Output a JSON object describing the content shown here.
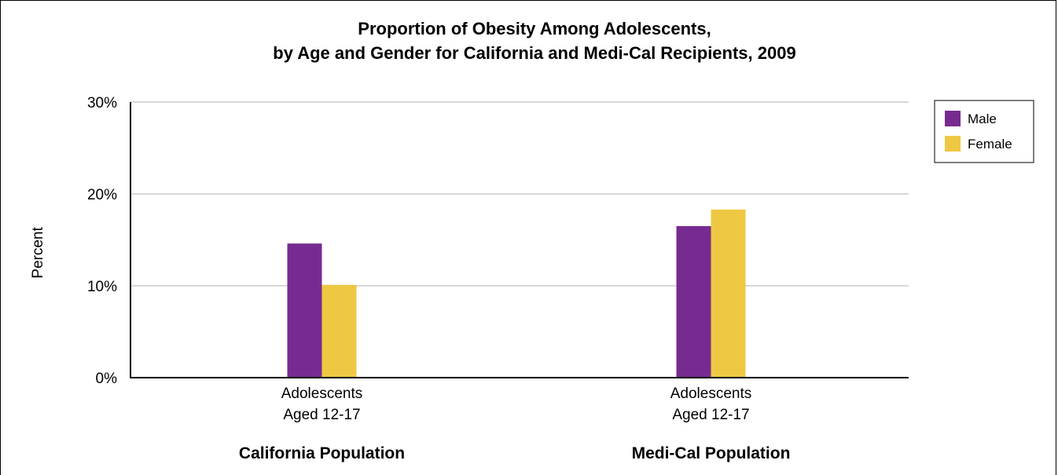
{
  "chart_data": {
    "type": "bar",
    "title_lines": [
      "Proportion of Obesity Among Adolescents,",
      "by Age and Gender for California and Medi-Cal Recipients, 2009"
    ],
    "ylabel": "Percent",
    "ylim": [
      0,
      30
    ],
    "yticks": [
      "0%",
      "10%",
      "20%",
      "30%"
    ],
    "ytick_values": [
      0,
      10,
      20,
      30
    ],
    "grid": true,
    "categories": [
      {
        "lines": [
          "Adolescents",
          "Aged 12-17"
        ],
        "group": "California Population"
      },
      {
        "lines": [
          "Adolescents",
          "Aged 12-17"
        ],
        "group": "Medi-Cal Population"
      }
    ],
    "series": [
      {
        "name": "Male",
        "color": "#772b91",
        "values": [
          14.6,
          16.5
        ]
      },
      {
        "name": "Female",
        "color": "#efc843",
        "values": [
          10.1,
          18.3
        ]
      }
    ],
    "legend_position": "top-right"
  }
}
